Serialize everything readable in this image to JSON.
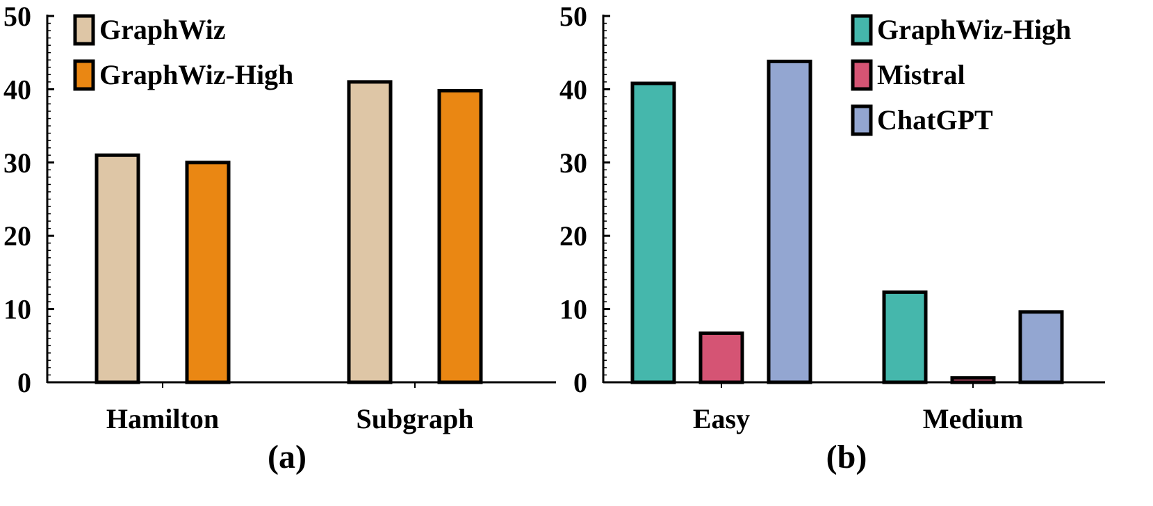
{
  "chart_data": [
    {
      "type": "bar",
      "panel_label": "(a)",
      "categories": [
        "Hamilton",
        "Subgraph"
      ],
      "series": [
        {
          "name": "GraphWiz",
          "color": "#dec6a6",
          "values": [
            31,
            41
          ]
        },
        {
          "name": "GraphWiz-High",
          "color": "#ea8713",
          "values": [
            30,
            39.8
          ]
        }
      ],
      "ylim": [
        0,
        50
      ],
      "yticks": [
        0,
        10,
        20,
        30,
        40,
        50
      ],
      "legend_position": "top-left",
      "grid": false
    },
    {
      "type": "bar",
      "panel_label": "(b)",
      "categories": [
        "Easy",
        "Medium"
      ],
      "series": [
        {
          "name": "GraphWiz-High",
          "color": "#45b7ac",
          "values": [
            40.8,
            12.3
          ]
        },
        {
          "name": "Mistral",
          "color": "#d55474",
          "values": [
            6.7,
            0.6
          ]
        },
        {
          "name": "ChatGPT",
          "color": "#93a6d1",
          "values": [
            43.8,
            9.6
          ]
        }
      ],
      "ylim": [
        0,
        50
      ],
      "yticks": [
        0,
        10,
        20,
        30,
        40,
        50
      ],
      "legend_position": "top-right",
      "grid": false
    }
  ]
}
